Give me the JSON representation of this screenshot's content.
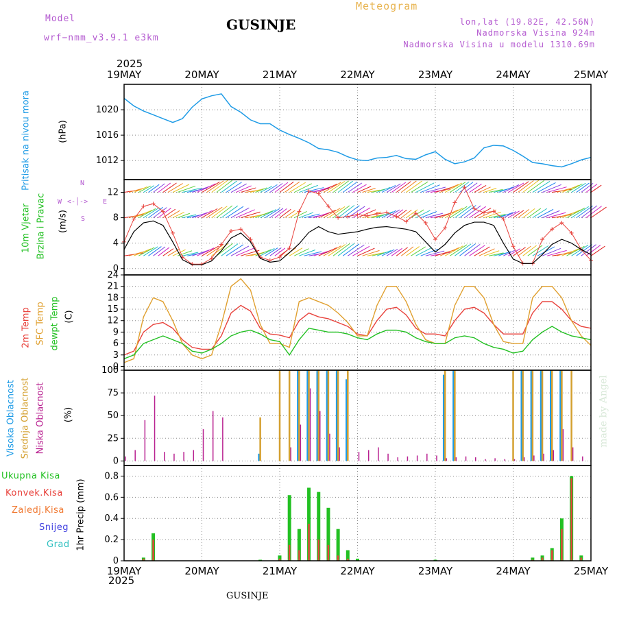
{
  "header": {
    "model_label": "Model",
    "model_name": "wrf−nmm_v3.9.1  e3km",
    "title": "GUSINJE",
    "meteogram": "Meteogram",
    "lonlat": "lon,lat (19.82E, 42.56N)",
    "elevation": "Nadmorska Visina 924m",
    "model_elevation": "Nadmorska Visina u modelu 1310.69m",
    "year": "2025"
  },
  "footer": {
    "station": "GUSINJE",
    "year": "2025"
  },
  "watermark": "made by Angel",
  "colors": {
    "pressure": "#1e9be6",
    "temp2m": "#e8423c",
    "sfc": "#e0a030",
    "dewpt": "#22c022",
    "high_cloud": "#1e9be6",
    "mid_cloud": "#d4a030",
    "low_cloud": "#b82090",
    "total_precip": "#22c022",
    "conv_precip": "#e8423c",
    "ice": "#f07830",
    "snow": "#4040e0",
    "hail": "#30c0c0"
  },
  "chart_data": [
    {
      "type": "line",
      "panel": "pressure",
      "title": "Pritisak na nivou mora",
      "ylabel": "(hPa)",
      "x_ticks": [
        "19MAY",
        "20MAY",
        "21MAY",
        "22MAY",
        "23MAY",
        "24MAY",
        "25MAY"
      ],
      "ylim": [
        1009,
        1024
      ],
      "yticks": [
        1012,
        1016,
        1020
      ],
      "x_hours": [
        0,
        3,
        6,
        9,
        12,
        15,
        18,
        21,
        24,
        27,
        30,
        33,
        36,
        39,
        42,
        45,
        48,
        51,
        54,
        57,
        60,
        63,
        66,
        69,
        72,
        75,
        78,
        81,
        84,
        87,
        90,
        93,
        96,
        99,
        102,
        105,
        108,
        111,
        114,
        117,
        120,
        123,
        126,
        129,
        132,
        135,
        138,
        141,
        144
      ],
      "values": [
        1021.8,
        1020.6,
        1019.8,
        1019.2,
        1018.6,
        1018.0,
        1018.6,
        1020.4,
        1021.7,
        1022.2,
        1022.5,
        1020.5,
        1019.6,
        1018.4,
        1017.8,
        1017.8,
        1016.8,
        1016.1,
        1015.5,
        1014.8,
        1013.9,
        1013.7,
        1013.3,
        1012.6,
        1012.1,
        1012.0,
        1012.4,
        1012.5,
        1012.8,
        1012.3,
        1012.2,
        1012.9,
        1013.4,
        1012.2,
        1011.5,
        1011.8,
        1012.4,
        1014.0,
        1014.4,
        1014.3,
        1013.6,
        1012.7,
        1011.7,
        1011.5,
        1011.2,
        1011.0,
        1011.5,
        1012.1,
        1012.5
      ]
    },
    {
      "type": "line",
      "panel": "wind",
      "title": "10m Vjetar",
      "title2": "Brzina i Pravac",
      "ylabel": "(m/s)",
      "compass": {
        "n": "N",
        "e": "E",
        "w": "W",
        "s": "S"
      },
      "ylim": [
        -1,
        14
      ],
      "yticks": [
        0,
        4,
        8,
        12
      ],
      "x_hours": [
        0,
        3,
        6,
        9,
        12,
        15,
        18,
        21,
        24,
        27,
        30,
        33,
        36,
        39,
        42,
        45,
        48,
        51,
        54,
        57,
        60,
        63,
        66,
        69,
        72,
        75,
        78,
        81,
        84,
        87,
        90,
        93,
        96,
        99,
        102,
        105,
        108,
        111,
        114,
        117,
        120,
        123,
        126,
        129,
        132,
        135,
        138,
        141,
        144
      ],
      "series": [
        {
          "name": "mean",
          "values": [
            3.0,
            5.8,
            7.2,
            7.5,
            6.8,
            4.2,
            1.4,
            0.6,
            0.6,
            1.2,
            2.8,
            4.8,
            5.6,
            4.2,
            1.6,
            1.0,
            1.2,
            2.5,
            3.9,
            5.7,
            6.6,
            5.8,
            5.4,
            5.6,
            5.8,
            6.2,
            6.5,
            6.6,
            6.4,
            6.2,
            5.8,
            4.2,
            2.6,
            3.8,
            5.6,
            6.8,
            7.3,
            7.3,
            6.8,
            4.0,
            1.5,
            0.8,
            0.8,
            2.2,
            3.8,
            4.6,
            4.0,
            3.0,
            2.2
          ]
        },
        {
          "name": "gust",
          "values": [
            4.2,
            7.8,
            9.8,
            10.2,
            9.0,
            5.6,
            1.8,
            0.7,
            0.7,
            1.6,
            3.8,
            5.9,
            6.2,
            4.6,
            1.8,
            1.3,
            1.8,
            3.2,
            9.0,
            12.2,
            11.8,
            9.8,
            8.0,
            8.2,
            8.5,
            8.3,
            8.6,
            8.8,
            8.2,
            7.4,
            8.7,
            7.2,
            4.6,
            6.4,
            10.4,
            12.8,
            9.4,
            8.8,
            9.0,
            7.8,
            3.5,
            0.8,
            0.8,
            4.6,
            6.2,
            7.2,
            5.6,
            3.0,
            1.3
          ]
        }
      ]
    },
    {
      "type": "line",
      "panel": "temperature",
      "title": "2m Temp",
      "title2": "SFC Temp",
      "title3": "dewpt Temp",
      "ylabel": "(C)",
      "ylim": [
        -1,
        24
      ],
      "yticks": [
        0,
        3,
        6,
        9,
        12,
        15,
        18,
        21,
        24
      ],
      "x_hours": [
        0,
        3,
        6,
        9,
        12,
        15,
        18,
        21,
        24,
        27,
        30,
        33,
        36,
        39,
        42,
        45,
        48,
        51,
        54,
        57,
        60,
        63,
        66,
        69,
        72,
        75,
        78,
        81,
        84,
        87,
        90,
        93,
        96,
        99,
        102,
        105,
        108,
        111,
        114,
        117,
        120,
        123,
        126,
        129,
        132,
        135,
        138,
        141,
        144
      ],
      "series": [
        {
          "name": "2m Temp",
          "values": [
            3,
            4,
            9,
            11,
            11.5,
            10,
            7,
            5,
            4.5,
            4.5,
            8,
            14,
            16,
            14.5,
            10,
            8.5,
            8.2,
            7.5,
            12,
            14,
            13,
            12.5,
            11.5,
            10.5,
            8.5,
            8,
            12,
            15,
            15.5,
            13.5,
            10,
            8.5,
            8.5,
            8,
            12,
            15,
            15.5,
            14,
            11,
            8.5,
            8.5,
            8.5,
            14,
            17,
            17,
            15,
            12,
            10.5,
            10
          ]
        },
        {
          "name": "SFC Temp",
          "values": [
            1,
            2,
            13,
            18,
            17,
            12,
            6,
            3,
            2,
            3,
            11,
            21,
            23,
            20,
            11,
            6,
            6,
            5,
            17,
            18,
            17,
            16,
            14,
            11.5,
            8,
            8,
            16,
            21,
            21,
            17,
            11,
            7,
            6,
            6,
            16,
            21,
            21,
            18,
            11,
            6.5,
            6,
            6,
            18,
            21,
            21,
            18,
            12,
            8,
            5.5
          ]
        },
        {
          "name": "dewpt Temp",
          "values": [
            2,
            3,
            6,
            7,
            8,
            7,
            6,
            4,
            3.5,
            4.5,
            6,
            8,
            9,
            9.5,
            8.5,
            7,
            6.5,
            3,
            7,
            10,
            9.5,
            9,
            9,
            8.5,
            7.5,
            7,
            8.5,
            9.5,
            9.5,
            9,
            7.5,
            6.5,
            6,
            6,
            7.5,
            8,
            7.5,
            6,
            5,
            4.5,
            3.5,
            4,
            7,
            9,
            10.5,
            9,
            8,
            7.5,
            7
          ]
        }
      ]
    },
    {
      "type": "bar",
      "panel": "clouds",
      "title": "Visoka Oblacnost",
      "title2": "Srednja Oblacnost",
      "title3": "Niska Oblacnost",
      "ylabel": "(%)",
      "ylim": [
        -5,
        100
      ],
      "yticks": [
        0,
        25,
        50,
        75,
        100
      ],
      "x_hours": [
        0,
        3,
        6,
        9,
        12,
        15,
        18,
        21,
        24,
        27,
        30,
        33,
        36,
        39,
        42,
        45,
        48,
        51,
        54,
        57,
        60,
        63,
        66,
        69,
        72,
        75,
        78,
        81,
        84,
        87,
        90,
        93,
        96,
        99,
        102,
        105,
        108,
        111,
        114,
        117,
        120,
        123,
        126,
        129,
        132,
        135,
        138,
        141,
        144
      ],
      "series": [
        {
          "name": "Visoka",
          "values": [
            0,
            0,
            0,
            0,
            0,
            0,
            0,
            0,
            0,
            0,
            0,
            0,
            0,
            0,
            8,
            0,
            0,
            0,
            100,
            100,
            100,
            100,
            100,
            90,
            0,
            0,
            0,
            0,
            0,
            0,
            0,
            0,
            0,
            95,
            100,
            0,
            0,
            0,
            0,
            0,
            0,
            100,
            100,
            100,
            100,
            100,
            0,
            0,
            0
          ]
        },
        {
          "name": "Srednja",
          "values": [
            0,
            0,
            0,
            0,
            0,
            0,
            0,
            0,
            0,
            0,
            0,
            0,
            0,
            0,
            48,
            0,
            100,
            100,
            100,
            100,
            100,
            100,
            100,
            100,
            0,
            0,
            0,
            0,
            0,
            0,
            0,
            0,
            0,
            100,
            100,
            0,
            0,
            0,
            0,
            0,
            100,
            100,
            100,
            100,
            100,
            100,
            100,
            0,
            0
          ]
        },
        {
          "name": "Niska",
          "values": [
            5,
            12,
            45,
            72,
            10,
            8,
            10,
            12,
            35,
            55,
            48,
            0,
            0,
            0,
            0,
            0,
            0,
            15,
            40,
            80,
            55,
            30,
            15,
            0,
            10,
            12,
            15,
            8,
            4,
            5,
            6,
            8,
            6,
            3,
            4,
            5,
            4,
            2,
            3,
            2,
            2,
            4,
            6,
            8,
            12,
            35,
            15,
            5,
            0
          ]
        }
      ]
    },
    {
      "type": "bar",
      "panel": "precip",
      "ylabel": "1hr Precip (mm)",
      "legend": [
        "Ukupna Kisa",
        "Konvek.Kisa",
        "Zaledj.Kisa",
        "Snijeg",
        "Grad"
      ],
      "ylim": [
        0,
        0.9
      ],
      "yticks": [
        0,
        0.2,
        0.4,
        0.6,
        0.8
      ],
      "x_ticks": [
        "19MAY",
        "20MAY",
        "21MAY",
        "22MAY",
        "23MAY",
        "24MAY",
        "25MAY"
      ],
      "x_hours": [
        0,
        3,
        6,
        9,
        12,
        15,
        18,
        21,
        24,
        27,
        30,
        33,
        36,
        39,
        42,
        45,
        48,
        51,
        54,
        57,
        60,
        63,
        66,
        69,
        72,
        75,
        78,
        81,
        84,
        87,
        90,
        93,
        96,
        99,
        102,
        105,
        108,
        111,
        114,
        117,
        120,
        123,
        126,
        129,
        132,
        135,
        138,
        141,
        144
      ],
      "series": [
        {
          "name": "Ukupna Kisa",
          "values": [
            0,
            0,
            0.03,
            0.26,
            0,
            0,
            0,
            0,
            0,
            0,
            0,
            0,
            0,
            0,
            0.01,
            0,
            0.05,
            0.62,
            0.3,
            0.69,
            0.65,
            0.5,
            0.3,
            0.1,
            0.02,
            0,
            0,
            0,
            0,
            0,
            0,
            0,
            0.01,
            0,
            0,
            0,
            0,
            0,
            0,
            0,
            0,
            0,
            0.03,
            0.05,
            0.12,
            0.4,
            0.8,
            0.05,
            0
          ]
        },
        {
          "name": "Konvek.Kisa",
          "values": [
            0,
            0,
            0.02,
            0.2,
            0,
            0,
            0,
            0,
            0,
            0,
            0,
            0,
            0,
            0,
            0,
            0,
            0.02,
            0.15,
            0.1,
            0.35,
            0.2,
            0.15,
            0.05,
            0.02,
            0,
            0,
            0,
            0,
            0,
            0,
            0,
            0,
            0,
            0,
            0,
            0,
            0,
            0,
            0,
            0,
            0,
            0,
            0.01,
            0.03,
            0.1,
            0.3,
            0.78,
            0.03,
            0
          ]
        }
      ]
    }
  ]
}
